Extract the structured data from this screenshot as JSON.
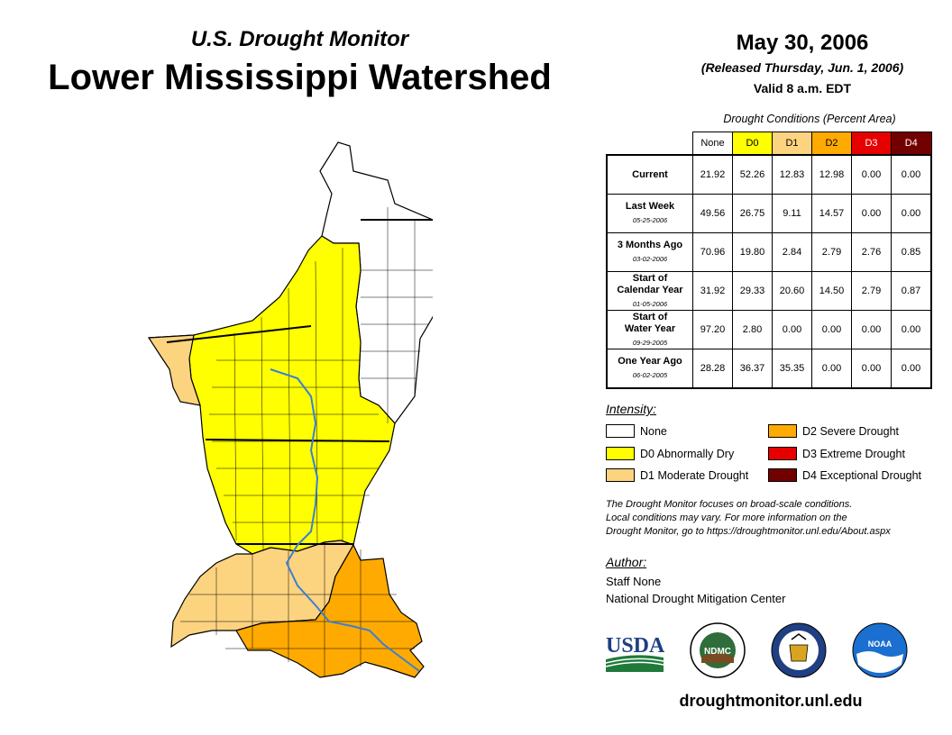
{
  "header": {
    "subtitle": "U.S. Drought Monitor",
    "title": "Lower Mississippi Watershed",
    "date": "May 30, 2006",
    "released": "(Released Thursday, Jun. 1, 2006)",
    "valid": "Valid 8 a.m. EDT"
  },
  "table": {
    "caption": "Drought Conditions (Percent Area)",
    "columns": [
      "None",
      "D0",
      "D1",
      "D2",
      "D3",
      "D4"
    ],
    "column_colors": [
      "#ffffff",
      "#ffff00",
      "#fcd37f",
      "#ffaa00",
      "#e60000",
      "#730000"
    ],
    "rows": [
      {
        "label": "Current",
        "label2": "",
        "date": "",
        "values": [
          "21.92",
          "52.26",
          "12.83",
          "12.98",
          "0.00",
          "0.00"
        ]
      },
      {
        "label": "Last Week",
        "label2": "",
        "date": "05-25-2006",
        "values": [
          "49.56",
          "26.75",
          "9.11",
          "14.57",
          "0.00",
          "0.00"
        ]
      },
      {
        "label": "3 Months Ago",
        "label2": "",
        "date": "03-02-2006",
        "values": [
          "70.96",
          "19.80",
          "2.84",
          "2.79",
          "2.76",
          "0.85"
        ]
      },
      {
        "label": "Start of",
        "label2": "Calendar Year",
        "date": "01-05-2006",
        "values": [
          "31.92",
          "29.33",
          "20.60",
          "14.50",
          "2.79",
          "0.87"
        ]
      },
      {
        "label": "Start of",
        "label2": "Water Year",
        "date": "09-29-2005",
        "values": [
          "97.20",
          "2.80",
          "0.00",
          "0.00",
          "0.00",
          "0.00"
        ]
      },
      {
        "label": "One Year Ago",
        "label2": "",
        "date": "06-02-2005",
        "values": [
          "28.28",
          "36.37",
          "35.35",
          "0.00",
          "0.00",
          "0.00"
        ]
      }
    ]
  },
  "legend": {
    "heading": "Intensity:",
    "items": [
      {
        "label": "None",
        "color": "#ffffff"
      },
      {
        "label": "D0 Abnormally Dry",
        "color": "#ffff00"
      },
      {
        "label": "D1 Moderate Drought",
        "color": "#fcd37f"
      },
      {
        "label": "D2 Severe Drought",
        "color": "#ffaa00"
      },
      {
        "label": "D3 Extreme Drought",
        "color": "#e60000"
      },
      {
        "label": "D4 Exceptional Drought",
        "color": "#730000"
      }
    ]
  },
  "note": {
    "line1": "The Drought Monitor focuses on broad-scale conditions.",
    "line2": "Local conditions may vary. For more information on the",
    "line3": "Drought Monitor, go to https://droughtmonitor.unl.edu/About.aspx"
  },
  "author": {
    "heading": "Author:",
    "name": "Staff None",
    "org": "National Drought Mitigation Center"
  },
  "logos": {
    "usda": "USDA",
    "ndmc": "NDMC",
    "noaa": "NOAA"
  },
  "footer": {
    "url": "droughtmonitor.unl.edu"
  },
  "map_colors": {
    "none": "#ffffff",
    "d0": "#ffff00",
    "d1": "#fcd37f",
    "d2": "#ffaa00",
    "river": "#3a7fd5",
    "border": "#000000"
  }
}
